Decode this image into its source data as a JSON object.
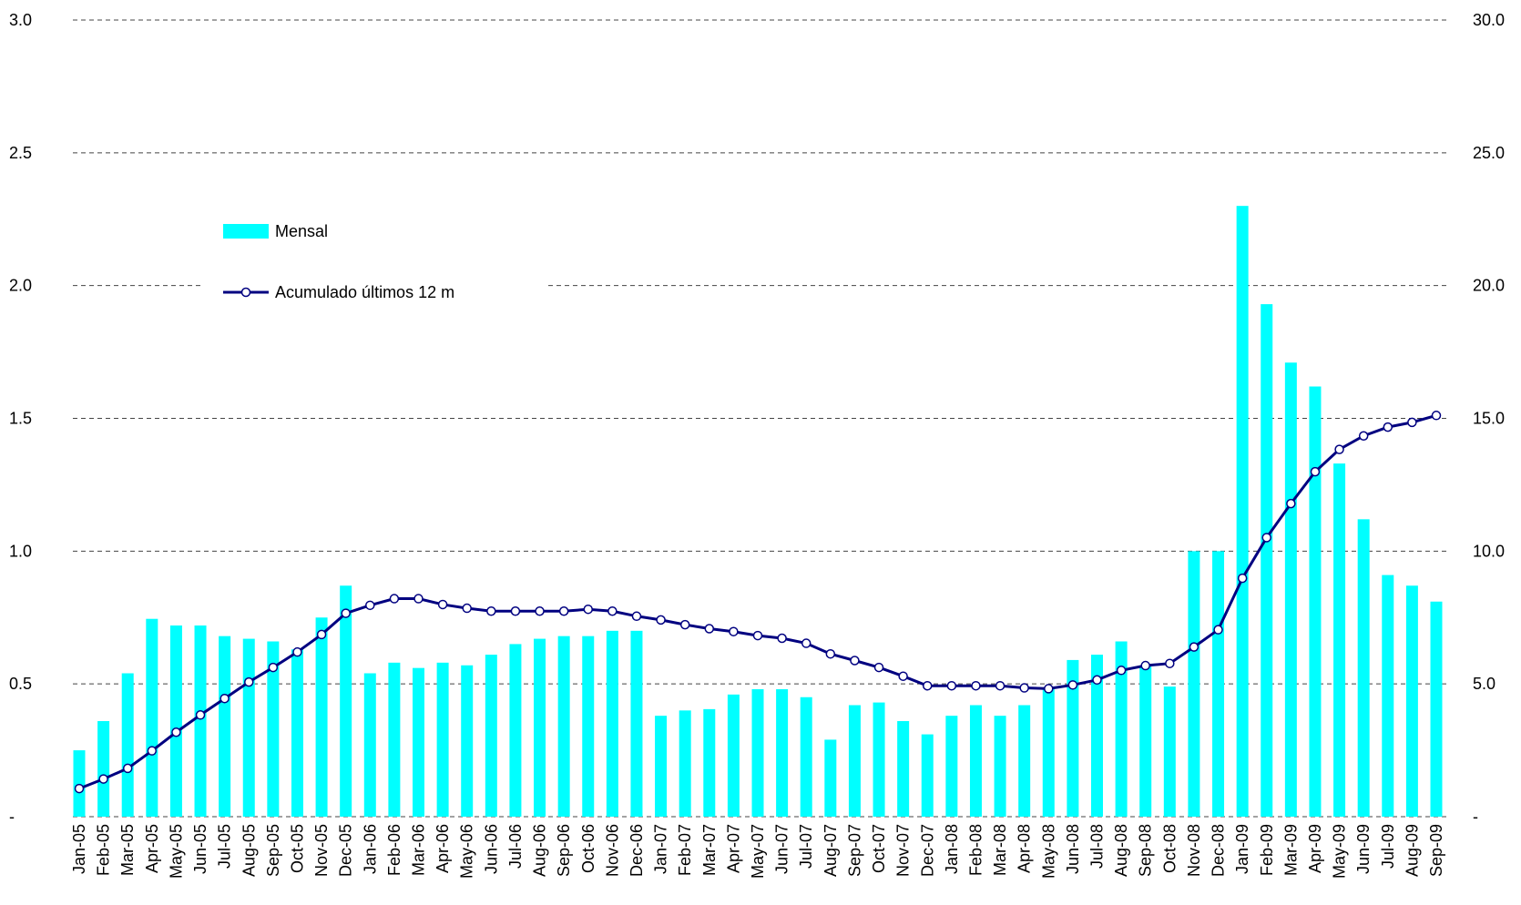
{
  "chart_data": {
    "type": "bar_line",
    "categories": [
      "Jan-05",
      "Feb-05",
      "Mar-05",
      "Apr-05",
      "May-05",
      "Jun-05",
      "Jul-05",
      "Aug-05",
      "Sep-05",
      "Oct-05",
      "Nov-05",
      "Dec-05",
      "Jan-06",
      "Feb-06",
      "Mar-06",
      "Apr-06",
      "May-06",
      "Jun-06",
      "Jul-06",
      "Aug-06",
      "Sep-06",
      "Oct-06",
      "Nov-06",
      "Dec-06",
      "Jan-07",
      "Feb-07",
      "Mar-07",
      "Apr-07",
      "May-07",
      "Jun-07",
      "Jul-07",
      "Aug-07",
      "Sep-07",
      "Oct-07",
      "Nov-07",
      "Dec-07",
      "Jan-08",
      "Feb-08",
      "Mar-08",
      "Apr-08",
      "May-08",
      "Jun-08",
      "Jul-08",
      "Aug-08",
      "Sep-08",
      "Oct-08",
      "Nov-08",
      "Dec-08",
      "Jan-09",
      "Feb-09",
      "Mar-09",
      "Apr-09",
      "May-09",
      "Jun-09",
      "Jul-09",
      "Aug-09",
      "Sep-09"
    ],
    "series": [
      {
        "name": "Mensal",
        "color": "#00ffff",
        "kind": "bar",
        "values": [
          0.25,
          0.36,
          0.54,
          0.745,
          0.72,
          0.72,
          0.68,
          0.67,
          0.66,
          0.63,
          0.75,
          0.87,
          0.54,
          0.58,
          0.56,
          0.58,
          0.57,
          0.61,
          0.65,
          0.67,
          0.68,
          0.68,
          0.7,
          0.7,
          0.38,
          0.4,
          0.405,
          0.46,
          0.48,
          0.48,
          0.45,
          0.29,
          0.42,
          0.43,
          0.36,
          0.31,
          0.38,
          0.42,
          0.38,
          0.42,
          0.48,
          0.59,
          0.61,
          0.66,
          0.57,
          0.49,
          1.0,
          1.0,
          2.3,
          1.93,
          1.71,
          1.62,
          1.33,
          1.12,
          0.91,
          0.87,
          0.81
        ]
      },
      {
        "name": "Acumulado últimos 12 m",
        "color": "#000080",
        "kind": "line",
        "axis": "y2",
        "values": [
          1.06,
          1.42,
          1.82,
          2.48,
          3.18,
          3.83,
          4.45,
          5.07,
          5.62,
          6.2,
          6.86,
          7.66,
          7.96,
          8.21,
          8.21,
          7.99,
          7.85,
          7.74,
          7.74,
          7.74,
          7.74,
          7.81,
          7.74,
          7.55,
          7.41,
          7.23,
          7.08,
          6.97,
          6.82,
          6.72,
          6.53,
          6.13,
          5.88,
          5.62,
          5.29,
          4.93,
          4.93,
          4.93,
          4.93,
          4.85,
          4.82,
          4.96,
          5.15,
          5.51,
          5.69,
          5.77,
          6.39,
          7.04,
          8.98,
          10.51,
          11.79,
          12.99,
          13.83,
          14.34,
          14.67,
          14.85,
          15.11
        ]
      }
    ],
    "ylim": [
      0,
      3
    ],
    "yticks": [
      {
        "value": 0,
        "label": "-"
      },
      0.5,
      {
        "value": 1,
        "label": "1.0"
      },
      1.5,
      {
        "value": 2,
        "label": "2.0"
      },
      2.5,
      {
        "value": 3,
        "label": "3.0"
      }
    ],
    "y2lim": [
      0,
      30
    ],
    "y2ticks": [
      {
        "value": 0,
        "label": "-"
      },
      {
        "value": 5,
        "label": "5.0"
      },
      {
        "value": 10,
        "label": "10.0"
      },
      {
        "value": 15,
        "label": "15.0"
      },
      {
        "value": 20,
        "label": "20.0"
      },
      {
        "value": 25,
        "label": "25.0"
      },
      {
        "value": 30,
        "label": "30.0"
      }
    ],
    "grid": true,
    "legend": "upper left"
  }
}
